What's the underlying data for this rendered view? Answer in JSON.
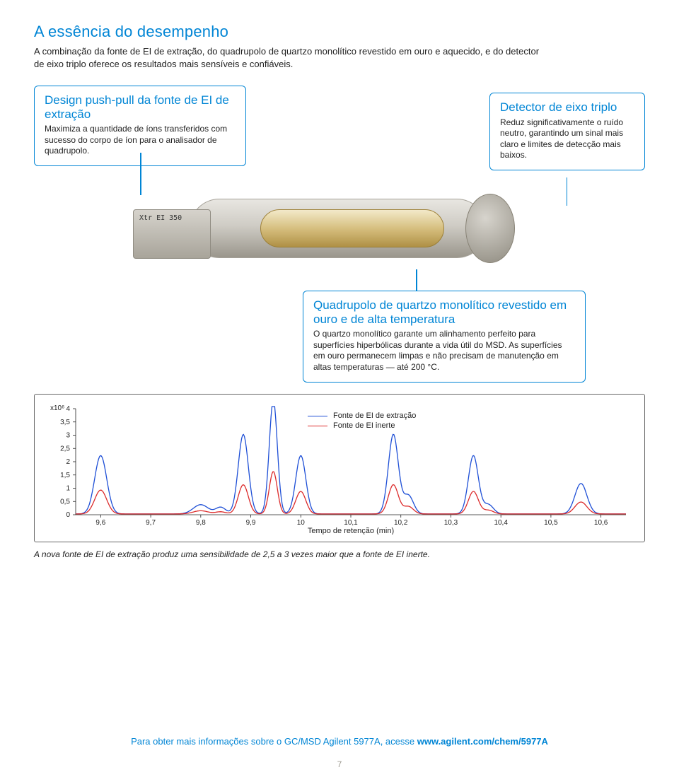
{
  "header": {
    "title": "A essência do desempenho",
    "description": "A combinação da fonte de EI de extração, do quadrupolo de quartzo monolítico revestido em ouro e aquecido, e do detector de eixo triplo oferece os resultados mais sensíveis e confiáveis."
  },
  "callouts": {
    "c1": {
      "title": "Design push-pull da fonte de EI de extração",
      "body": "Maximiza a quantidade de íons transferidos com sucesso do corpo de íon para o analisador de quadrupolo."
    },
    "c2": {
      "title": "Detector de eixo triplo",
      "body": "Reduz significativamente o ruído neutro, garantindo um sinal mais claro e limites de detecção mais baixos."
    },
    "c3": {
      "title": "Quadrupolo de quartzo monolítico revestido em ouro e de alta temperatura",
      "body": "O quartzo monolítico garante um alinhamento perfeito para superfícies hiperbólicas durante a vida útil do MSD. As superfícies em ouro permanecem limpas e não precisam de manutenção em altas temperaturas — até 200 °C."
    }
  },
  "instrument_label": "Xtr\nEI\n350",
  "chart": {
    "type": "line",
    "y_unit_label": "x10⁶",
    "x_axis_title": "Tempo de retenção (min)",
    "ylim": [
      0,
      4
    ],
    "yticks": [
      0,
      0.5,
      1,
      1.5,
      2,
      2.5,
      3,
      3.5,
      4
    ],
    "ytick_labels": [
      "0",
      "0,5",
      "1",
      "1,5",
      "2",
      "2,5",
      "3",
      "3,5",
      "4"
    ],
    "xlim": [
      9.55,
      10.65
    ],
    "xticks": [
      9.6,
      9.7,
      9.8,
      9.9,
      10,
      10.1,
      10.2,
      10.3,
      10.4,
      10.5,
      10.6
    ],
    "xtick_labels": [
      "9,6",
      "9,7",
      "9,8",
      "9,9",
      "10",
      "10,1",
      "10,2",
      "10,3",
      "10,4",
      "10,5",
      "10,6"
    ],
    "series": [
      {
        "name": "Fonte de EI de extração",
        "color": "#1e4fd6",
        "line_width": 1.3,
        "peaks": [
          {
            "x": 9.6,
            "h": 2.2,
            "w": 0.012
          },
          {
            "x": 9.8,
            "h": 0.35,
            "w": 0.015
          },
          {
            "x": 9.84,
            "h": 0.25,
            "w": 0.01
          },
          {
            "x": 9.885,
            "h": 3.0,
            "w": 0.01
          },
          {
            "x": 9.945,
            "h": 4.3,
            "w": 0.008
          },
          {
            "x": 10.0,
            "h": 2.2,
            "w": 0.01
          },
          {
            "x": 10.185,
            "h": 3.0,
            "w": 0.01
          },
          {
            "x": 10.215,
            "h": 0.7,
            "w": 0.01
          },
          {
            "x": 10.345,
            "h": 2.2,
            "w": 0.01
          },
          {
            "x": 10.375,
            "h": 0.35,
            "w": 0.01
          },
          {
            "x": 10.56,
            "h": 1.15,
            "w": 0.012
          }
        ]
      },
      {
        "name": "Fonte de EI inerte",
        "color": "#dc2b2b",
        "line_width": 1.3,
        "peaks": [
          {
            "x": 9.6,
            "h": 0.9,
            "w": 0.012
          },
          {
            "x": 9.8,
            "h": 0.12,
            "w": 0.015
          },
          {
            "x": 9.84,
            "h": 0.08,
            "w": 0.01
          },
          {
            "x": 9.885,
            "h": 1.1,
            "w": 0.01
          },
          {
            "x": 9.945,
            "h": 1.6,
            "w": 0.008
          },
          {
            "x": 10.0,
            "h": 0.85,
            "w": 0.01
          },
          {
            "x": 10.185,
            "h": 1.1,
            "w": 0.01
          },
          {
            "x": 10.215,
            "h": 0.28,
            "w": 0.01
          },
          {
            "x": 10.345,
            "h": 0.85,
            "w": 0.01
          },
          {
            "x": 10.375,
            "h": 0.14,
            "w": 0.01
          },
          {
            "x": 10.56,
            "h": 0.45,
            "w": 0.012
          }
        ]
      }
    ],
    "legend_position": "top-center",
    "background_color": "#ffffff",
    "axis_color": "#222222",
    "tick_fontsize": 10,
    "title_fontsize": 11
  },
  "chart_caption": "A nova fonte de EI de extração produz uma sensibilidade de 2,5 a 3 vezes maior que a fonte de EI inerte.",
  "footer": {
    "prefix": "Para obter mais informações sobre o GC/MSD Agilent 5977A, acesse ",
    "link_bold": "www.agilent.com/chem/5977A"
  },
  "page_number": "7"
}
